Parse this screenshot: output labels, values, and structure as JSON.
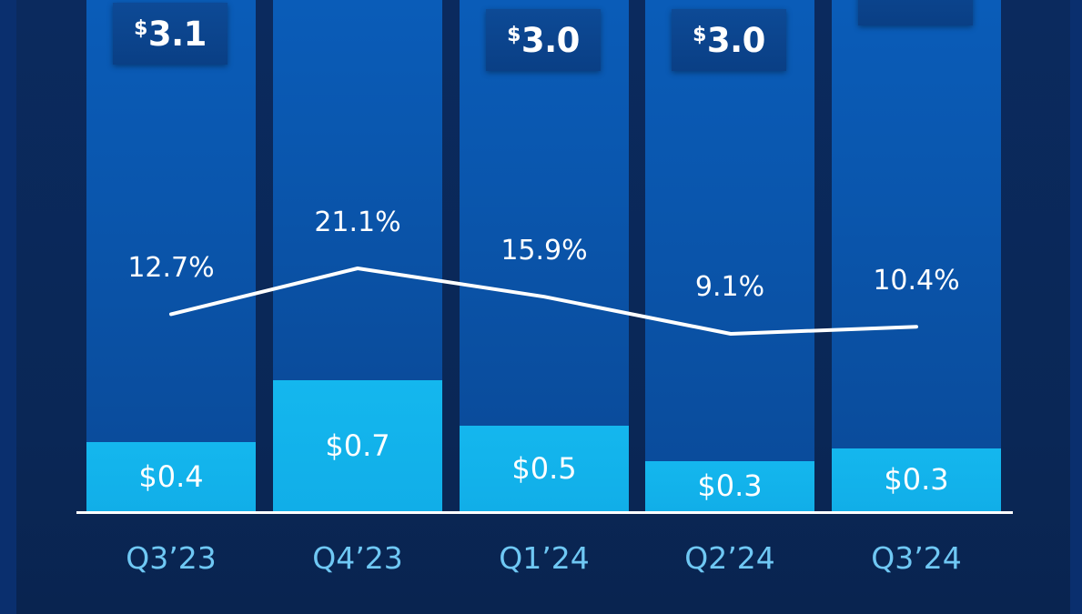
{
  "chart_data": {
    "type": "bar",
    "categories": [
      "Q3’23",
      "Q4’23",
      "Q1’24",
      "Q2’24",
      "Q3’24"
    ],
    "totals": {
      "values": [
        3.1,
        null,
        3.0,
        3.0,
        null
      ],
      "labels": [
        "3.1",
        "",
        "3.0",
        "3.0",
        ""
      ],
      "currency_symbol": "$"
    },
    "bottom_segment": {
      "values": [
        0.4,
        0.7,
        0.5,
        0.3,
        0.3
      ],
      "labels": [
        "$0.4",
        "$0.7",
        "$0.5",
        "$0.3",
        "$0.3"
      ]
    },
    "line_series": {
      "values": [
        12.7,
        21.1,
        15.9,
        9.1,
        10.4
      ],
      "labels": [
        "12.7%",
        "21.1%",
        "15.9%",
        "9.1%",
        "10.4%"
      ]
    },
    "colors": {
      "background": "#06214f",
      "bar_top": "#0a56ad",
      "bar_bottom": "#11aee8",
      "line": "#ffffff",
      "category_label": "#6fc8f4"
    }
  }
}
